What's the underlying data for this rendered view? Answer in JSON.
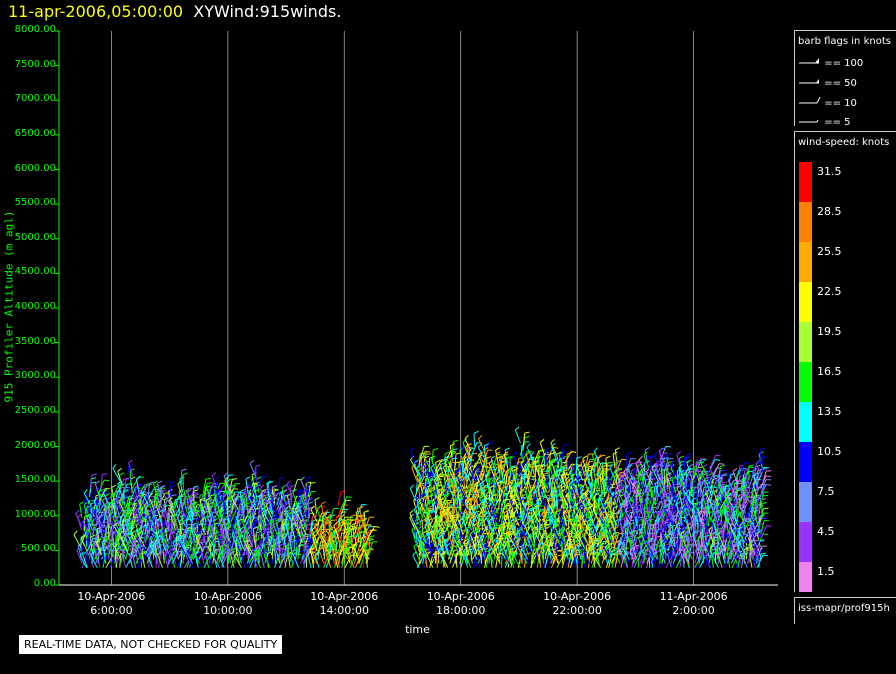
{
  "title": {
    "date": "11-apr-2006,05:00:00",
    "product": "XYWind:915winds."
  },
  "notice": "REAL-TIME DATA, NOT CHECKED FOR QUALITY",
  "legend": {
    "barb_title": "barb flags in knots",
    "barbs": [
      "== 100",
      "== 50",
      "== 10",
      "== 5"
    ],
    "speed_title": "wind-speed: knots",
    "filename": "iss-mapr/prof915h"
  },
  "colorbar": [
    {
      "label": "31.5",
      "color": "#ff0000"
    },
    {
      "label": "28.5",
      "color": "#ff7f00"
    },
    {
      "label": "25.5",
      "color": "#ffaa00"
    },
    {
      "label": "22.5",
      "color": "#ffff00"
    },
    {
      "label": "19.5",
      "color": "#aaff33"
    },
    {
      "label": "16.5",
      "color": "#00ff00"
    },
    {
      "label": "13.5",
      "color": "#00ffff"
    },
    {
      "label": "10.5",
      "color": "#0000ff"
    },
    {
      "label": "7.5",
      "color": "#6f8fff"
    },
    {
      "label": "4.5",
      "color": "#9933ff"
    },
    {
      "label": "1.5",
      "color": "#ee82ee"
    }
  ],
  "chart_data": {
    "type": "scatter",
    "title": "XYWind:915winds.",
    "ylabel": "915 Profiler Altitude (m agl)",
    "xlabel": "time",
    "ylim": [
      0,
      8000
    ],
    "yticks": [
      "8000.00",
      "7500.00",
      "7000.00",
      "6500.00",
      "6000.00",
      "5500.00",
      "5000.00",
      "4500.00",
      "4000.00",
      "3500.00",
      "3000.00",
      "2500.00",
      "2000.00",
      "1500.00",
      "1000.00",
      "500.00",
      "0.00"
    ],
    "xticks": [
      {
        "date": "10-Apr-2006",
        "time": "6:00:00"
      },
      {
        "date": "10-Apr-2006",
        "time": "10:00:00"
      },
      {
        "date": "10-Apr-2006",
        "time": "14:00:00"
      },
      {
        "date": "10-Apr-2006",
        "time": "18:00:00"
      },
      {
        "date": "10-Apr-2006",
        "time": "22:00:00"
      },
      {
        "date": "11-Apr-2006",
        "time": "2:00:00"
      }
    ],
    "grid": "vertical",
    "series": [
      {
        "hours": [
          5.0,
          6.0,
          7.0,
          8.0,
          9.0,
          10.0,
          11.0,
          12.0
        ],
        "top_m": 1500,
        "speed_kt": 12
      },
      {
        "hours": [
          13.0,
          14.0
        ],
        "top_m": 1100,
        "speed_kt": 22
      },
      {
        "hours": [
          16.5,
          17.5,
          18.5,
          19.5,
          20.5,
          21.5,
          22.5
        ],
        "top_m": 2000,
        "speed_kt": 18
      },
      {
        "hours": [
          23.5,
          24.5,
          25.5,
          26.5,
          27.5
        ],
        "top_m": 1900,
        "speed_kt": 10
      }
    ]
  }
}
